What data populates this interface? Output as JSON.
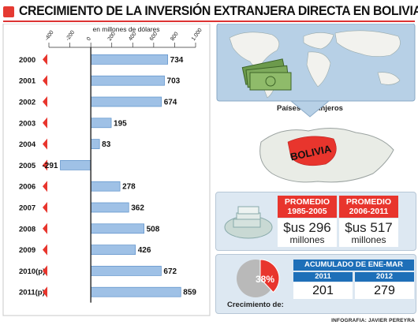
{
  "header": {
    "title": "CRECIMIENTO DE LA INVERSIÓN EXTRANJERA DIRECTA EN BOLIVIA"
  },
  "chart_data": {
    "type": "bar",
    "orientation": "horizontal",
    "unit_label": "en millones de dólares",
    "categories": [
      "2000",
      "2001",
      "2002",
      "2003",
      "2004",
      "2005",
      "2006",
      "2007",
      "2008",
      "2009",
      "2010(p)",
      "2011(p)"
    ],
    "values": [
      734,
      703,
      674,
      195,
      83,
      -291,
      278,
      362,
      508,
      426,
      672,
      859
    ],
    "xlim": [
      -400,
      1000
    ],
    "ticks": [
      "-400",
      "-200",
      "0",
      "200",
      "400",
      "600",
      "800",
      "1.000"
    ],
    "bar_color": "#9fc1e6",
    "accent_color": "#e8352d"
  },
  "map": {
    "label": "Países extranjeros",
    "country_label": "BOLIVIA"
  },
  "averages": [
    {
      "title": "PROMEDIO",
      "range": "1985-2005",
      "amount": "$us 296",
      "unit": "millones"
    },
    {
      "title": "PROMEDIO",
      "range": "2006-2011",
      "amount": "$us 517",
      "unit": "millones"
    }
  ],
  "accumulated": {
    "title": "ACUMULADO DE ENE-MAR",
    "years": [
      "2011",
      "2012"
    ],
    "values": [
      "201",
      "279"
    ],
    "growth_label": "Crecimiento de:",
    "growth_percent": "38%",
    "growth_fraction": 0.38
  },
  "credit": "INFOGRAFIA: JAVIER PEREYRA"
}
